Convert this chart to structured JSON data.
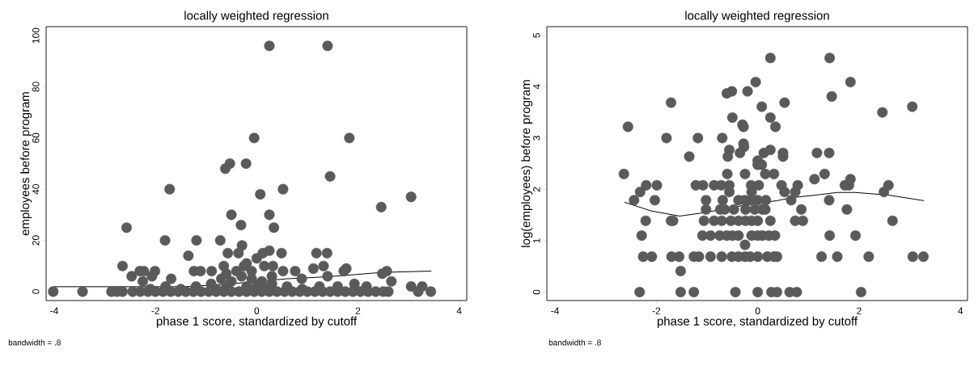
{
  "chart_data": [
    {
      "type": "scatter",
      "title": "locally weighted regression",
      "xlabel": "phase 1 score, standardized by cutoff",
      "ylabel": "employees before program",
      "annotations": [
        "bandwidth = .8"
      ],
      "xlim": [
        -4.16,
        4.15
      ],
      "ylim": [
        -3.5,
        103.5
      ],
      "xticks": [
        -4,
        -2,
        0,
        2,
        4
      ],
      "yticks": [
        0,
        20,
        40,
        60,
        80,
        100
      ],
      "grid": false,
      "series": [
        {
          "type": "scatter",
          "marker": "circle",
          "color": "#5a5a5a",
          "x": [
            0.25,
            1.4,
            -0.05,
            1.83,
            -0.53,
            -0.62,
            -0.21,
            1.45,
            -1.72,
            0.52,
            0.07,
            3.05,
            2.46,
            -0.5,
            0.25,
            -0.31,
            0.34,
            -2.57,
            -1.81,
            -1.19,
            -0.72,
            -0.29,
            -1.35,
            -0.57,
            -0.36,
            0.12,
            0.25,
            0.49,
            1.18,
            1.39,
            -2.65,
            0,
            0.15,
            0.32,
            1.12,
            1.32,
            1.77,
            1.72,
            2.57,
            2.48,
            2.66,
            3.05,
            3.27,
            3.19,
            3.44,
            1.4,
            -2.47,
            -2.31,
            -2.23,
            -2.01,
            -2.07,
            -2.25,
            -1.69,
            -1.24,
            -1.11,
            -0.89,
            -0.65,
            -0.25,
            0.76,
            0.52,
            0.89,
            1.93,
            2.17,
            1.24,
            -0.9,
            -0.7,
            -0.5,
            -0.3,
            -0.1,
            0.1,
            0.3,
            -0.6,
            -0.2,
            0.2,
            -1.2,
            -1.5,
            -0.8,
            0,
            -0.4,
            -0.1,
            0.3,
            0.6,
            0.9,
            1.6,
            -1.8,
            -2.1,
            -0.6,
            -0.2,
            -4.02,
            -3.44,
            -2.87,
            -2.76,
            -2.65,
            -2.45,
            -2.3,
            -2.15,
            -2.0,
            -1.85,
            -1.7,
            -1.55,
            -1.4,
            -1.25,
            -1.1,
            -0.95,
            -0.8,
            -0.65,
            -0.5,
            -0.35,
            -0.2,
            -0.05,
            0.1,
            0.25,
            0.4,
            0.55,
            0.7,
            0.85,
            1.0,
            1.15,
            1.3,
            1.45,
            1.6,
            1.75,
            1.9,
            2.05,
            2.2,
            2.35,
            2.5,
            2.6
          ],
          "values": [
            96,
            96,
            60,
            60,
            50,
            48,
            50,
            45,
            40,
            40,
            38,
            37,
            33,
            30,
            30,
            26,
            25,
            25,
            20,
            20,
            20,
            18,
            14,
            15,
            15,
            15,
            16,
            15,
            15,
            15,
            10,
            13,
            10,
            10,
            9,
            10,
            9,
            8,
            8,
            7,
            4,
            2,
            2,
            0,
            0,
            6,
            6,
            8,
            8,
            8,
            6,
            4,
            5,
            8,
            8,
            8,
            10,
            10,
            8,
            8,
            5,
            3,
            2,
            2,
            3,
            5,
            4,
            6,
            5,
            4,
            3,
            2,
            2,
            1,
            2,
            1,
            1,
            2,
            8,
            8,
            6,
            2,
            1,
            2,
            2,
            1,
            7,
            11,
            0,
            0,
            0,
            0,
            0,
            0,
            0,
            0,
            0,
            0,
            0,
            0,
            0,
            0,
            0,
            0,
            0,
            0,
            0,
            0,
            0,
            0,
            0,
            0,
            0,
            0,
            0,
            0,
            0,
            0,
            0,
            0,
            0,
            0,
            0,
            0,
            0,
            0,
            0,
            0
          ]
        },
        {
          "type": "line",
          "color": "#000000",
          "line_style": "solid",
          "marker": "none",
          "x": [
            -4.01,
            -2.07,
            -1.43,
            -0.57,
            0.01,
            0.6,
            1.4,
            1.93,
            2.47,
            3.45
          ],
          "values": [
            1.9,
            1.9,
            1.9,
            2.9,
            4,
            5,
            5.8,
            6.6,
            7.5,
            8
          ]
        }
      ]
    },
    {
      "type": "scatter",
      "title": "locally weighted regression",
      "xlabel": "phase 1 score, standardized by cutoff",
      "ylabel": "log(employees) before program",
      "annotations": [
        "bandwidth = .8"
      ],
      "xlim": [
        -4.16,
        4.14
      ],
      "ylim": [
        -0.165,
        5.17
      ],
      "xticks": [
        -4,
        -2,
        0,
        2,
        4
      ],
      "yticks": [
        0,
        1,
        2,
        3,
        4,
        5
      ],
      "grid": false,
      "series": [
        {
          "type": "scatter",
          "marker": "circle",
          "color": "#5a5a5a",
          "x": [
            0.25,
            1.42,
            -0.04,
            1.83,
            -0.61,
            -0.51,
            -0.2,
            1.46,
            -1.71,
            0.53,
            0.08,
            3.05,
            2.46,
            -0.5,
            0.25,
            -2.56,
            -0.3,
            -0.28,
            0.35,
            -1.8,
            -1.18,
            -0.7,
            -0.28,
            -0.27,
            -0.56,
            0.25,
            -1.35,
            -0.59,
            -0.35,
            0.12,
            0.5,
            0.5,
            1.17,
            1.41,
            0,
            0,
            0.08,
            -2.64,
            -0.6,
            -0.25,
            0.15,
            0.32,
            1.12,
            1.32,
            1.83,
            -2.2,
            -1.99,
            -1.22,
            -1.08,
            -0.86,
            -0.72,
            -0.56,
            -0.13,
            0.02,
            0.47,
            0.79,
            1.72,
            1.8,
            2.58,
            -2.32,
            -0.56,
            -0.12,
            0.53,
            0.74,
            2.49,
            -2.44,
            -2.03,
            -1.02,
            -0.69,
            -0.38,
            -0.26,
            -0.15,
            0,
            0.16,
            0.66,
            1.41,
            -1.02,
            -0.74,
            -0.65,
            -0.47,
            -0.24,
            -0.06,
            0.09,
            0.15,
            0.86,
            1.76,
            -2.21,
            -1.71,
            -1.67,
            -1.06,
            -0.86,
            -0.71,
            -0.53,
            -0.38,
            -0.24,
            -0.12,
            0,
            0.25,
            0.74,
            0.89,
            2.66,
            -2.29,
            -1.09,
            -0.93,
            -0.75,
            -0.61,
            -0.5,
            -0.38,
            -0.12,
            0,
            0.09,
            0.22,
            0.34,
            1.42,
            1.93,
            -0.25,
            -2.26,
            -2.09,
            -1.7,
            -1.55,
            -1.26,
            -1.16,
            -0.93,
            -0.71,
            -0.51,
            -0.38,
            -0.25,
            -0.15,
            0,
            0.19,
            0.32,
            0.38,
            1.26,
            1.57,
            2.19,
            3.06,
            3.27,
            -1.52,
            -2.33,
            -1.52,
            -1.26,
            -0.44,
            0,
            0.27,
            0.38,
            0.63,
            0.77,
            2.04
          ],
          "values": [
            4.56,
            4.56,
            4.09,
            4.09,
            3.87,
            3.91,
            3.91,
            3.81,
            3.69,
            3.69,
            3.61,
            3.61,
            3.5,
            3.4,
            3.4,
            3.22,
            3.26,
            3.22,
            3.22,
            3,
            3,
            3,
            2.89,
            2.83,
            2.77,
            2.77,
            2.64,
            2.64,
            2.71,
            2.71,
            2.71,
            2.64,
            2.71,
            2.71,
            2.56,
            2.48,
            2.48,
            2.3,
            2.3,
            2.3,
            2.3,
            2.3,
            2.2,
            2.3,
            2.2,
            2.08,
            2.08,
            2.08,
            2.08,
            2.08,
            2.08,
            2.08,
            2.08,
            2.08,
            2.08,
            2.08,
            2.08,
            2.08,
            2.08,
            1.95,
            1.95,
            1.95,
            1.95,
            1.95,
            1.95,
            1.79,
            1.79,
            1.79,
            1.79,
            1.79,
            1.79,
            1.79,
            1.79,
            1.79,
            1.79,
            1.79,
            1.61,
            1.61,
            1.61,
            1.61,
            1.61,
            1.61,
            1.61,
            1.61,
            1.61,
            1.61,
            1.39,
            1.39,
            1.39,
            1.39,
            1.39,
            1.39,
            1.39,
            1.39,
            1.39,
            1.39,
            1.39,
            1.39,
            1.39,
            1.39,
            1.39,
            1.1,
            1.1,
            1.1,
            1.1,
            1.1,
            1.1,
            1.1,
            1.1,
            1.1,
            1.1,
            1.1,
            1.1,
            1.1,
            1.1,
            0.92,
            0.69,
            0.69,
            0.69,
            0.69,
            0.69,
            0.69,
            0.69,
            0.69,
            0.69,
            0.69,
            0.69,
            0.69,
            0.69,
            0.69,
            0.69,
            0.69,
            0.69,
            0.69,
            0.69,
            0.69,
            0.69,
            0.41,
            0,
            0,
            0,
            0,
            0,
            0,
            0,
            0,
            0,
            0
          ]
        },
        {
          "type": "line",
          "color": "#000000",
          "line_style": "solid",
          "marker": "none",
          "x": [
            -2.63,
            -2.1,
            -1.54,
            -1.03,
            -0.56,
            0,
            0.38,
            0.68,
            1.15,
            1.57,
            1.92,
            2.57,
            3.28
          ],
          "values": [
            1.75,
            1.58,
            1.48,
            1.55,
            1.64,
            1.73,
            1.78,
            1.84,
            1.89,
            1.94,
            1.94,
            1.89,
            1.78
          ]
        }
      ]
    }
  ]
}
